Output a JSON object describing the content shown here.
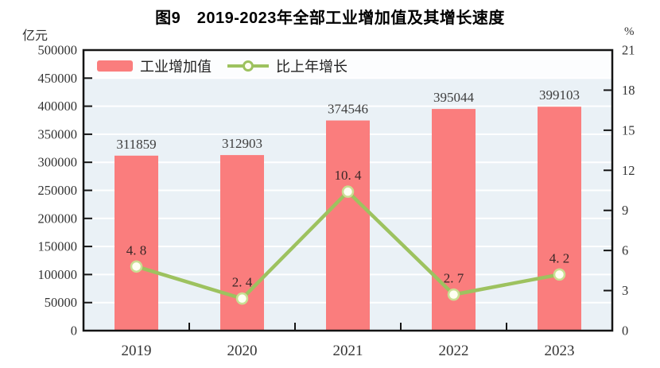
{
  "chart_data": {
    "type": "combo-bar-line",
    "title": "图9　2019-2023年全部工业增加值及其增长速度",
    "categories": [
      "2019",
      "2020",
      "2021",
      "2022",
      "2023"
    ],
    "series": [
      {
        "name": "工业增加值",
        "type": "bar",
        "axis": "left",
        "values": [
          311859,
          312903,
          374546,
          395044,
          399103
        ],
        "labels": [
          "311859",
          "312903",
          "374546",
          "395044",
          "399103"
        ],
        "color": "#fa7d7d"
      },
      {
        "name": "比上年增长",
        "type": "line",
        "axis": "right",
        "values": [
          4.8,
          2.4,
          10.4,
          2.7,
          4.2
        ],
        "labels": [
          "4. 8",
          "2. 4",
          "10. 4",
          "2. 7",
          "4. 2"
        ],
        "color": "#9dc25f"
      }
    ],
    "left_axis": {
      "unit": "亿元",
      "min": 0,
      "max": 500000,
      "step": 50000,
      "tick_labels": [
        "500000",
        "450000",
        "400000",
        "350000",
        "300000",
        "250000",
        "200000",
        "150000",
        "100000",
        "50000",
        "0"
      ]
    },
    "right_axis": {
      "unit": "%",
      "min": 0,
      "max": 21,
      "step": 3,
      "tick_labels": [
        "21",
        "18",
        "15",
        "12",
        "9",
        "6",
        "3",
        "0"
      ]
    },
    "legend": {
      "position": "top-left-inside",
      "items": [
        "工业增加值",
        "比上年增长"
      ]
    },
    "grid": true
  },
  "colors": {
    "bar": "#fa7d7d",
    "line": "#9dc25f",
    "marker_fill": "#fffff2",
    "marker_ring": "#c9de92",
    "plot_bg": "#eaf1f6",
    "top_band": "#fcfdfe",
    "grid_line": "#ffffff",
    "axis": "#141414",
    "tick_label": "#333333",
    "bar_label": "#3d3d3d",
    "line_label": "#3a2727",
    "x_label": "#333333"
  }
}
